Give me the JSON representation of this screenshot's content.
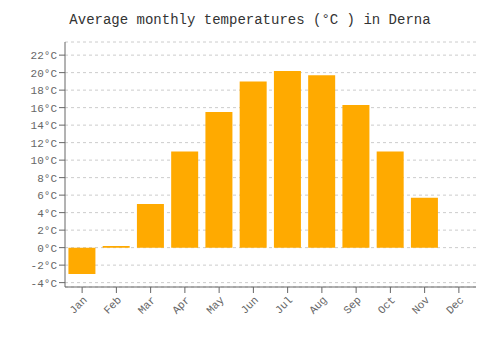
{
  "chart_data": {
    "type": "bar",
    "title": "Average monthly temperatures (°C ) in Derna",
    "categories": [
      "Jan",
      "Feb",
      "Mar",
      "Apr",
      "May",
      "Jun",
      "Jul",
      "Aug",
      "Sep",
      "Oct",
      "Nov",
      "Dec"
    ],
    "values": [
      -3.0,
      0.2,
      5.0,
      11.0,
      15.5,
      19.0,
      20.2,
      19.7,
      16.3,
      11.0,
      5.7,
      0.0
    ],
    "color": "#FFAA00",
    "ylim": [
      -4.5,
      23.5
    ],
    "yticks": [
      {
        "value": -4,
        "label": "-4°C"
      },
      {
        "value": -2,
        "label": "-2°C"
      },
      {
        "value": 0,
        "label": "0°C"
      },
      {
        "value": 2,
        "label": "2°C"
      },
      {
        "value": 4,
        "label": "4°C"
      },
      {
        "value": 6,
        "label": "6°C"
      },
      {
        "value": 8,
        "label": "8°C"
      },
      {
        "value": 10,
        "label": "10°C"
      },
      {
        "value": 12,
        "label": "12°C"
      },
      {
        "value": 14,
        "label": "14°C"
      },
      {
        "value": 16,
        "label": "16°C"
      },
      {
        "value": 18,
        "label": "18°C"
      },
      {
        "value": 20,
        "label": "20°C"
      },
      {
        "value": 22,
        "label": "22°C"
      }
    ],
    "grid": true
  }
}
